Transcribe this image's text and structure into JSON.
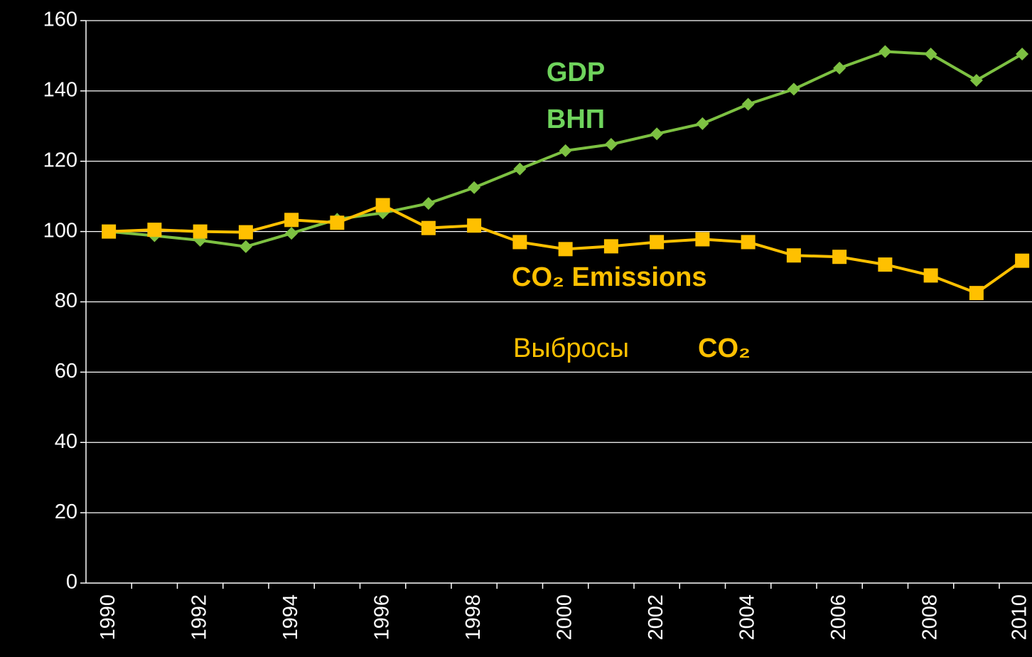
{
  "chart_data": {
    "type": "line",
    "categories": [
      "1990",
      null,
      "1992",
      null,
      "1994",
      null,
      "1996",
      null,
      "1998",
      null,
      "2000",
      null,
      "2002",
      null,
      "2004",
      null,
      "2006",
      null,
      "2008",
      null,
      "2010"
    ],
    "series": [
      {
        "name": "GDP",
        "color": "#7dc142",
        "label_color": "#6fd45c",
        "marker": "diamond",
        "values": [
          100,
          98.8,
          97.5,
          95.7,
          99.5,
          103.5,
          105.3,
          108,
          112.5,
          117.8,
          123,
          124.8,
          127.8,
          130.7,
          136.2,
          140.5,
          146.5,
          151.2,
          150.5,
          143,
          150.5
        ]
      },
      {
        "name": "CO₂ Emissions",
        "color": "#ffc000",
        "label_color": "#ffc000",
        "marker": "square",
        "values": [
          100,
          100.5,
          100,
          99.8,
          103.3,
          102.5,
          107.5,
          101,
          101.7,
          97,
          95,
          95.8,
          97,
          97.8,
          97,
          93.2,
          92.8,
          90.6,
          87.5,
          82.5,
          91.7
        ]
      }
    ],
    "annotations": [
      "ВНП",
      "Выбросы",
      "CO₂"
    ],
    "ylim": [
      0,
      160
    ],
    "yticks": [
      0,
      20,
      40,
      60,
      80,
      100,
      120,
      140,
      160
    ],
    "grid": true
  }
}
